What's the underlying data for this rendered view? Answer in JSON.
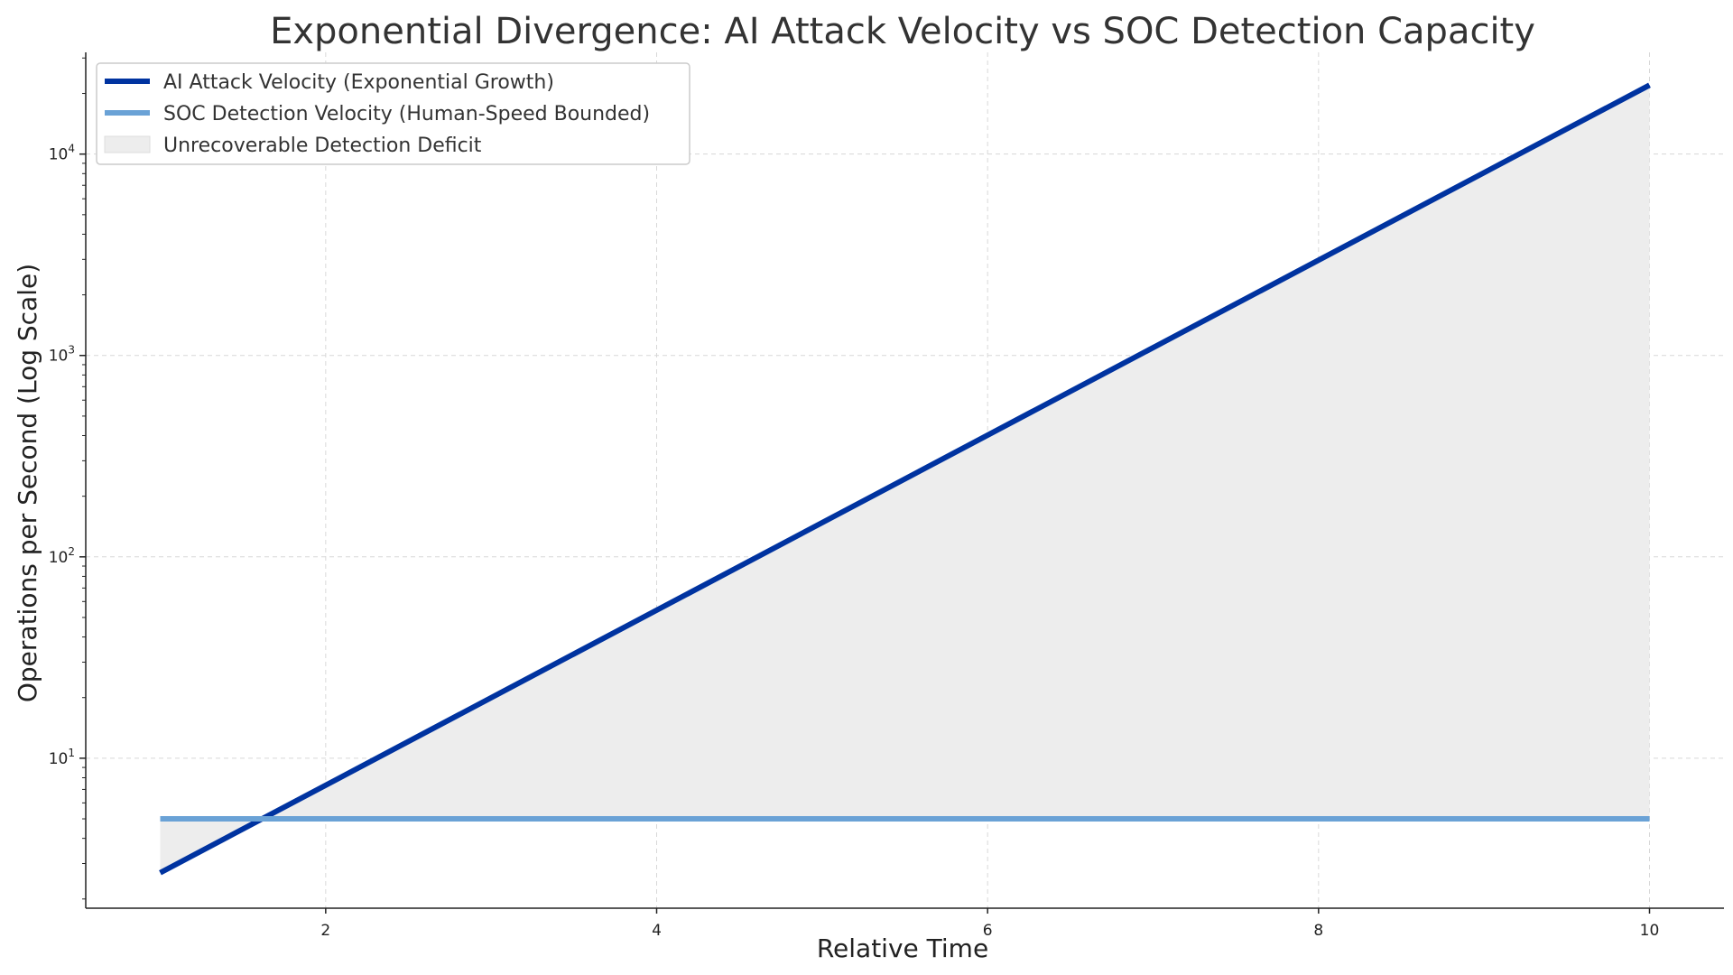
{
  "chart_data": {
    "type": "line",
    "title": "Exponential Divergence: AI Attack Velocity vs SOC Detection Capacity",
    "xlabel": "Relative Time",
    "ylabel": "Operations per Second (Log Scale)",
    "xlim": [
      0.55,
      10.45
    ],
    "ylim": [
      1.8,
      32000
    ],
    "y_scale": "log",
    "grid": true,
    "legend_placement": "top-left",
    "x_ticks": [
      2,
      4,
      6,
      8,
      10
    ],
    "y_ticks": [
      {
        "value": 10,
        "base": "10",
        "exp": "1"
      },
      {
        "value": 100,
        "base": "10",
        "exp": "2"
      },
      {
        "value": 1000,
        "base": "10",
        "exp": "3"
      },
      {
        "value": 10000,
        "base": "10",
        "exp": "4"
      }
    ],
    "series": [
      {
        "name": "AI Attack Velocity (Exponential Growth)",
        "color": "#0033a0",
        "x": [
          1,
          10
        ],
        "y": [
          2.7,
          22000
        ]
      },
      {
        "name": "SOC Detection Velocity (Human-Speed Bounded)",
        "color": "#6aa2d6",
        "x": [
          1,
          10
        ],
        "y": [
          5,
          5
        ]
      }
    ],
    "fill_area": {
      "name": "Unrecoverable Detection Deficit",
      "color": "#ededed",
      "between": [
        "AI Attack Velocity (Exponential Growth)",
        "SOC Detection Velocity (Human-Speed Bounded)"
      ]
    }
  }
}
